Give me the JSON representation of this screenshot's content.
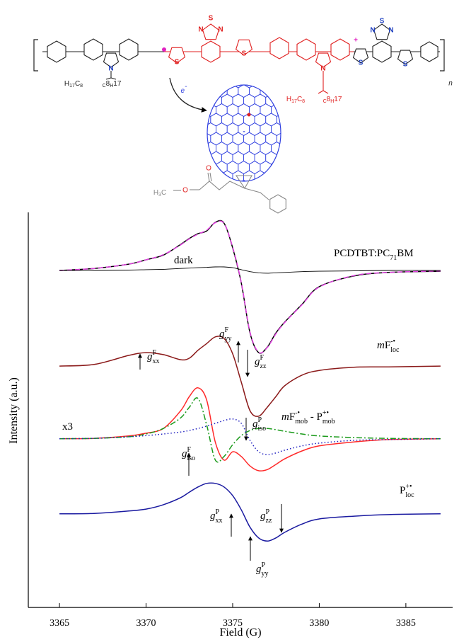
{
  "structure": {
    "alkyl": [
      [
        "H",
        "17",
        "C",
        "8"
      ],
      [
        "C",
        "8",
        "H",
        "17"
      ],
      [
        "H",
        "17",
        "C",
        "8"
      ],
      [
        "C",
        "8",
        "H",
        "17"
      ]
    ],
    "atoms": [
      "N",
      "S",
      "N",
      "S",
      "N",
      "S",
      "N",
      "N",
      "S",
      "N",
      "S",
      "S"
    ],
    "electron": {
      "symbol": "e",
      "charge": "-"
    },
    "repeat": "n",
    "polaron": "+",
    "anion": "-",
    "ester": {
      "methyl": [
        "H",
        "3",
        "C"
      ],
      "oxygen": [
        "O",
        "O"
      ]
    }
  },
  "chart_data": {
    "type": "line",
    "x_label": "Field (G)",
    "y_label": "Intensity (a.u.)",
    "xlim": [
      3363.2,
      3387.7
    ],
    "xticks": [
      3365,
      3370,
      3375,
      3380,
      3385
    ],
    "ylim": [
      0,
      10
    ],
    "x": [
      3365,
      3367,
      3369,
      3370,
      3371,
      3372,
      3372.5,
      3373,
      3373.5,
      3374,
      3374.5,
      3375,
      3375.5,
      3376,
      3376.5,
      3377,
      3377.5,
      3378,
      3379,
      3380,
      3382,
      3384,
      3387
    ],
    "series": [
      {
        "color": "#000000",
        "style": "solid",
        "values": [
          8.53,
          8.58,
          8.69,
          8.8,
          8.92,
          9.19,
          9.34,
          9.46,
          9.53,
          9.75,
          9.73,
          9.1,
          8.21,
          6.95,
          6.45,
          6.59,
          6.95,
          7.22,
          7.67,
          8.12,
          8.39,
          8.48,
          8.51
        ]
      },
      {
        "color": "#e040e0",
        "style": "dashed",
        "values": [
          8.53,
          8.58,
          8.69,
          8.8,
          8.93,
          9.18,
          9.33,
          9.45,
          9.55,
          9.74,
          9.72,
          9.12,
          8.22,
          6.97,
          6.46,
          6.58,
          6.93,
          7.21,
          7.66,
          8.11,
          8.4,
          8.48,
          8.52
        ]
      },
      {
        "color": "#000000",
        "style": "thin",
        "values": [
          8.53,
          8.53,
          8.54,
          8.55,
          8.56,
          8.58,
          8.59,
          8.6,
          8.61,
          8.62,
          8.62,
          8.6,
          8.55,
          8.5,
          8.47,
          8.46,
          8.47,
          8.48,
          8.5,
          8.51,
          8.52,
          8.53,
          8.53
        ]
      },
      {
        "color": "#8b1a1a",
        "style": "solid",
        "values": [
          6.11,
          6.15,
          6.38,
          6.45,
          6.4,
          6.27,
          6.31,
          6.51,
          6.68,
          6.85,
          6.81,
          6.42,
          5.7,
          4.98,
          4.84,
          5.07,
          5.34,
          5.61,
          5.88,
          6.0,
          6.08,
          6.09,
          6.11
        ]
      },
      {
        "color": "#ff2a2a",
        "style": "solid",
        "values": [
          4.27,
          4.28,
          4.34,
          4.41,
          4.53,
          4.98,
          5.34,
          5.56,
          5.25,
          4.18,
          3.73,
          3.94,
          3.82,
          3.58,
          3.46,
          3.49,
          3.62,
          3.76,
          3.96,
          4.09,
          4.19,
          4.25,
          4.27
        ]
      },
      {
        "color": "#1a9a1a",
        "style": "dashdot",
        "values": [
          4.27,
          4.28,
          4.32,
          4.39,
          4.53,
          4.8,
          5.07,
          5.29,
          4.62,
          3.73,
          3.82,
          4.12,
          4.35,
          4.48,
          4.53,
          4.53,
          4.5,
          4.46,
          4.39,
          4.34,
          4.3,
          4.28,
          4.27
        ]
      },
      {
        "color": "#2020c0",
        "style": "dotted",
        "values": [
          4.27,
          4.28,
          4.32,
          4.35,
          4.39,
          4.44,
          4.48,
          4.53,
          4.59,
          4.66,
          4.73,
          4.77,
          4.66,
          4.23,
          3.94,
          3.87,
          3.91,
          3.98,
          4.09,
          4.16,
          4.23,
          4.25,
          4.27
        ]
      },
      {
        "color": "#1a1aa0",
        "style": "solid",
        "values": [
          2.37,
          2.38,
          2.44,
          2.49,
          2.6,
          2.78,
          2.92,
          3.05,
          3.14,
          3.14,
          3.05,
          2.83,
          2.47,
          2.03,
          1.76,
          1.68,
          1.76,
          1.9,
          2.11,
          2.24,
          2.31,
          2.35,
          2.37
        ]
      }
    ],
    "annotations": [
      {
        "text": "PCDTBT:PC",
        "sub": "71",
        "tail": "BM"
      },
      {
        "text": "dark"
      },
      {
        "italic": "m",
        "text": "F",
        "sup": "-•",
        "sub": "loc"
      },
      {
        "italic": "g",
        "sup": "F",
        "sub": "xx"
      },
      {
        "italic": "g",
        "sup": "F",
        "sub": "yy"
      },
      {
        "italic": "g",
        "sup": "F",
        "sub": "zz"
      },
      {
        "text": "x3"
      },
      {
        "italic": "m",
        "text": "F",
        "sup": "-•",
        "sub": "mob",
        "tail": " - P",
        "sup2": "+•",
        "sub2": "mob"
      },
      {
        "italic": "g",
        "sup": "P",
        "sub": "iso"
      },
      {
        "italic": "g",
        "sup": "F",
        "sub": "iso"
      },
      {
        "text": "P",
        "sup": "+•",
        "sub": "loc"
      },
      {
        "italic": "g",
        "sup": "P",
        "sub": "xx"
      },
      {
        "italic": "g",
        "sup": "P",
        "sub": "zz"
      },
      {
        "italic": "g",
        "sup": "P",
        "sub": "yy"
      }
    ]
  }
}
